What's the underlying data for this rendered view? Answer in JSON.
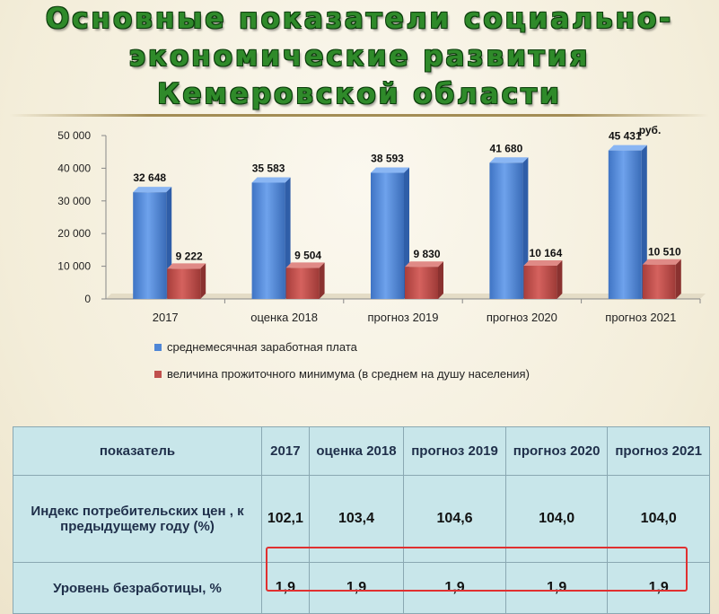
{
  "title": {
    "line1": "Основные показатели социально-",
    "line2": "экономические развития",
    "line3": "Кемеровской области"
  },
  "chart_data": {
    "type": "bar",
    "categories": [
      "2017",
      "оценка 2018",
      "прогноз 2019",
      "прогноз 2020",
      "прогноз 2021"
    ],
    "series": [
      {
        "name": "среднемесячная заработная плата",
        "values": [
          32648,
          35583,
          38593,
          41680,
          45431
        ],
        "color": "#4f86d6"
      },
      {
        "name": "величина прожиточного минимума (в среднем на душу населения)",
        "values": [
          9222,
          9504,
          9830,
          10164,
          10510
        ],
        "color": "#c0504d"
      }
    ],
    "data_labels": [
      [
        "32 648",
        "35 583",
        "38 593",
        "41 680",
        "45 431"
      ],
      [
        "9 222",
        "9 504",
        "9 830",
        "10 164",
        "10 510"
      ]
    ],
    "ylim": [
      0,
      50000
    ],
    "yticks": [
      0,
      10000,
      20000,
      30000,
      40000,
      50000
    ],
    "ytick_labels": [
      "0",
      "10 000",
      "20 000",
      "30 000",
      "40 000",
      "50 000"
    ],
    "unit": "руб.",
    "grid": false,
    "legend_position": "bottom-left"
  },
  "table": {
    "headers": [
      "показатель",
      "2017",
      "оценка 2018",
      "прогноз 2019",
      "прогноз 2020",
      "прогноз 2021"
    ],
    "rows": [
      {
        "label": "Индекс потребительских цен , к предыдущему году (%)",
        "values": [
          "102,1",
          "103,4",
          "104,6",
          "104,0",
          "104,0"
        ]
      },
      {
        "label": "Уровень безработицы, %",
        "values": [
          "1,9",
          "1,9",
          "1,9",
          "1,9",
          "1,9"
        ]
      }
    ]
  }
}
